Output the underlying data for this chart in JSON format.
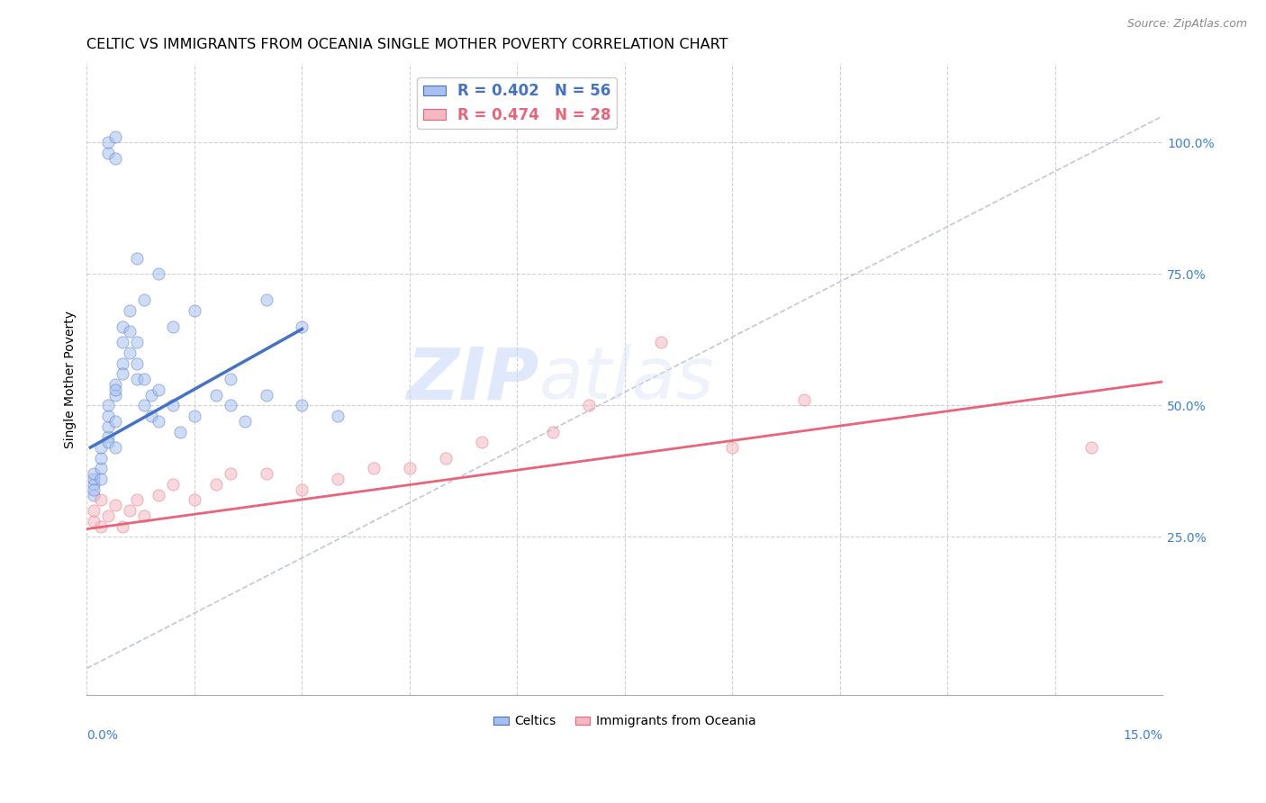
{
  "title": "CELTIC VS IMMIGRANTS FROM OCEANIA SINGLE MOTHER POVERTY CORRELATION CHART",
  "source": "Source: ZipAtlas.com",
  "ylabel": "Single Mother Poverty",
  "right_yticks": [
    25.0,
    50.0,
    75.0,
    100.0
  ],
  "legend_entries": [
    {
      "label": "R = 0.402   N = 56",
      "color": "#4472c4"
    },
    {
      "label": "R = 0.474   N = 28",
      "color": "#e8647a"
    }
  ],
  "bottom_legend": [
    "Celtics",
    "Immigrants from Oceania"
  ],
  "bottom_legend_blue": "#a8bfee",
  "bottom_legend_pink": "#f4b8c2",
  "watermark_zip": "ZIP",
  "watermark_atlas": "atlas",
  "xmin": 0.0,
  "xmax": 0.15,
  "ymin": -0.05,
  "ymax": 1.15,
  "celtics_x": [
    0.001,
    0.001,
    0.001,
    0.001,
    0.001,
    0.002,
    0.002,
    0.002,
    0.002,
    0.003,
    0.003,
    0.003,
    0.003,
    0.003,
    0.004,
    0.004,
    0.004,
    0.004,
    0.004,
    0.005,
    0.005,
    0.005,
    0.005,
    0.006,
    0.006,
    0.006,
    0.007,
    0.007,
    0.007,
    0.008,
    0.008,
    0.009,
    0.009,
    0.01,
    0.01,
    0.012,
    0.013,
    0.015,
    0.018,
    0.02,
    0.022,
    0.025,
    0.03,
    0.035,
    0.015,
    0.02,
    0.025,
    0.03,
    0.003,
    0.003,
    0.004,
    0.004,
    0.007,
    0.008,
    0.01,
    0.012
  ],
  "celtics_y": [
    0.35,
    0.36,
    0.37,
    0.33,
    0.34,
    0.38,
    0.4,
    0.42,
    0.36,
    0.44,
    0.46,
    0.48,
    0.43,
    0.5,
    0.52,
    0.54,
    0.47,
    0.53,
    0.42,
    0.58,
    0.62,
    0.56,
    0.65,
    0.6,
    0.68,
    0.64,
    0.55,
    0.58,
    0.62,
    0.5,
    0.55,
    0.48,
    0.52,
    0.47,
    0.53,
    0.5,
    0.45,
    0.48,
    0.52,
    0.5,
    0.47,
    0.52,
    0.5,
    0.48,
    0.68,
    0.55,
    0.7,
    0.65,
    0.98,
    1.0,
    0.97,
    1.01,
    0.78,
    0.7,
    0.75,
    0.65
  ],
  "oceania_x": [
    0.001,
    0.001,
    0.002,
    0.002,
    0.003,
    0.004,
    0.005,
    0.006,
    0.007,
    0.008,
    0.01,
    0.012,
    0.015,
    0.018,
    0.02,
    0.025,
    0.03,
    0.035,
    0.04,
    0.045,
    0.05,
    0.055,
    0.065,
    0.07,
    0.08,
    0.09,
    0.1,
    0.14
  ],
  "oceania_y": [
    0.28,
    0.3,
    0.27,
    0.32,
    0.29,
    0.31,
    0.27,
    0.3,
    0.32,
    0.29,
    0.33,
    0.35,
    0.32,
    0.35,
    0.37,
    0.37,
    0.34,
    0.36,
    0.38,
    0.38,
    0.4,
    0.43,
    0.45,
    0.5,
    0.62,
    0.42,
    0.51,
    0.42
  ],
  "blue_line_x": [
    0.0005,
    0.03
  ],
  "blue_line_y": [
    0.42,
    0.645
  ],
  "pink_line_x": [
    0.0,
    0.15
  ],
  "pink_line_y": [
    0.265,
    0.545
  ],
  "diag_line_x": [
    0.0,
    0.15
  ],
  "diag_line_y": [
    0.0,
    1.05
  ],
  "scatter_alpha": 0.55,
  "dot_size": 90,
  "blue_color": "#4472c4",
  "blue_fill": "#a8c0f0",
  "pink_color": "#e8647a",
  "pink_fill": "#f4b8c2",
  "grid_color": "#d0d0d0",
  "diag_color": "#c0c8d8",
  "title_fontsize": 11.5,
  "label_fontsize": 10,
  "tick_fontsize": 10,
  "right_tick_color": "#3a7fd5",
  "bottom_tick_color": "#3a7fd5"
}
